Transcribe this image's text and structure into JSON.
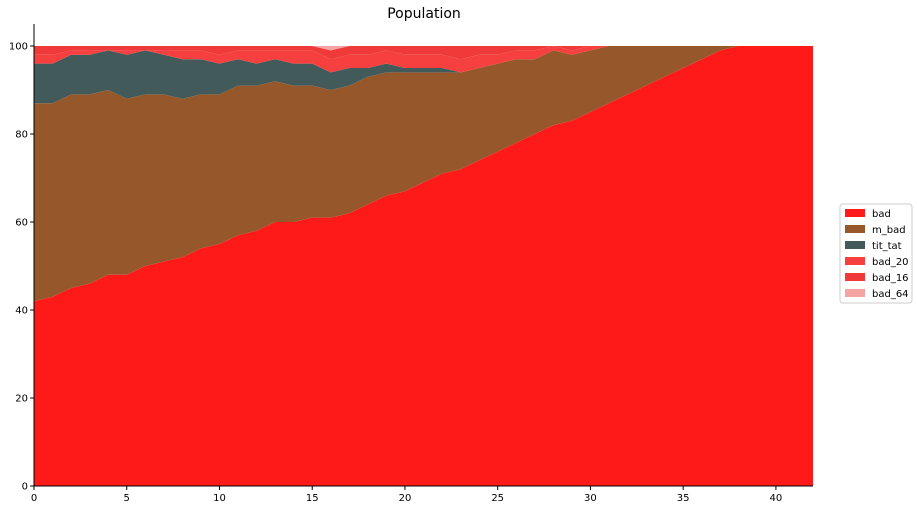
{
  "chart_data": {
    "type": "area",
    "stacked": true,
    "title": "Population",
    "xlabel": "",
    "ylabel": "",
    "xlim": [
      0,
      42
    ],
    "ylim": [
      0,
      105
    ],
    "xticks": [
      0,
      5,
      10,
      15,
      20,
      25,
      30,
      35,
      40
    ],
    "yticks": [
      0,
      20,
      40,
      60,
      80,
      100
    ],
    "grid": false,
    "legend_position": "center-right",
    "x": [
      0,
      1,
      2,
      3,
      4,
      5,
      6,
      7,
      8,
      9,
      10,
      11,
      12,
      13,
      14,
      15,
      16,
      17,
      18,
      19,
      20,
      21,
      22,
      23,
      24,
      25,
      26,
      27,
      28,
      29,
      30,
      31,
      32,
      33,
      34,
      35,
      36,
      37,
      38,
      39,
      40,
      41,
      42
    ],
    "series": [
      {
        "name": "bad",
        "color": "#ff1a1a",
        "values": [
          42,
          43,
          45,
          46,
          48,
          48,
          50,
          51,
          52,
          54,
          55,
          57,
          58,
          60,
          60,
          61,
          61,
          62,
          64,
          66,
          67,
          69,
          71,
          72,
          74,
          76,
          78,
          80,
          82,
          83,
          85,
          87,
          89,
          91,
          93,
          95,
          97,
          99,
          100,
          100,
          100,
          100,
          100
        ]
      },
      {
        "name": "m_bad",
        "color": "#96582a",
        "values": [
          45,
          44,
          44,
          43,
          42,
          40,
          39,
          38,
          36,
          35,
          34,
          34,
          33,
          32,
          31,
          30,
          29,
          29,
          29,
          28,
          27,
          25,
          23,
          22,
          21,
          20,
          19,
          17,
          17,
          15,
          14,
          13,
          11,
          9,
          7,
          5,
          3,
          1,
          0,
          0,
          0,
          0,
          0
        ]
      },
      {
        "name": "tit_tat",
        "color": "#435a5a",
        "values": [
          9,
          9,
          9,
          9,
          9,
          10,
          10,
          9,
          9,
          8,
          7,
          6,
          5,
          5,
          5,
          5,
          4,
          4,
          2,
          2,
          1,
          1,
          1,
          0,
          0,
          0,
          0,
          0,
          0,
          0,
          0,
          0,
          0,
          0,
          0,
          0,
          0,
          0,
          0,
          0,
          0,
          0,
          0
        ]
      },
      {
        "name": "bad_20",
        "color": "#f63f3f",
        "values": [
          2,
          2,
          1,
          1,
          0,
          1,
          0,
          1,
          2,
          2,
          2,
          2,
          3,
          2,
          3,
          3,
          3,
          3,
          3,
          3,
          3,
          3,
          3,
          3,
          3,
          2,
          2,
          2,
          1,
          1,
          1,
          0,
          0,
          0,
          0,
          0,
          0,
          0,
          0,
          0,
          0,
          0,
          0
        ]
      },
      {
        "name": "bad_16",
        "color": "#f03a3a",
        "values": [
          2,
          2,
          1,
          1,
          1,
          1,
          1,
          1,
          1,
          1,
          2,
          1,
          1,
          1,
          1,
          1,
          2,
          2,
          2,
          1,
          2,
          2,
          2,
          3,
          2,
          2,
          1,
          1,
          0,
          1,
          0,
          0,
          0,
          0,
          0,
          0,
          0,
          0,
          0,
          0,
          0,
          0,
          0
        ]
      },
      {
        "name": "bad_64",
        "color": "#f5a3a3",
        "values": [
          0,
          0,
          0,
          0,
          0,
          0,
          0,
          0,
          0,
          0,
          0,
          0,
          0,
          0,
          0,
          0,
          1,
          0,
          0,
          0,
          0,
          0,
          0,
          0,
          0,
          0,
          0,
          0,
          0,
          0,
          0,
          0,
          0,
          0,
          0,
          0,
          0,
          0,
          0,
          0,
          0,
          0,
          0
        ]
      }
    ]
  }
}
